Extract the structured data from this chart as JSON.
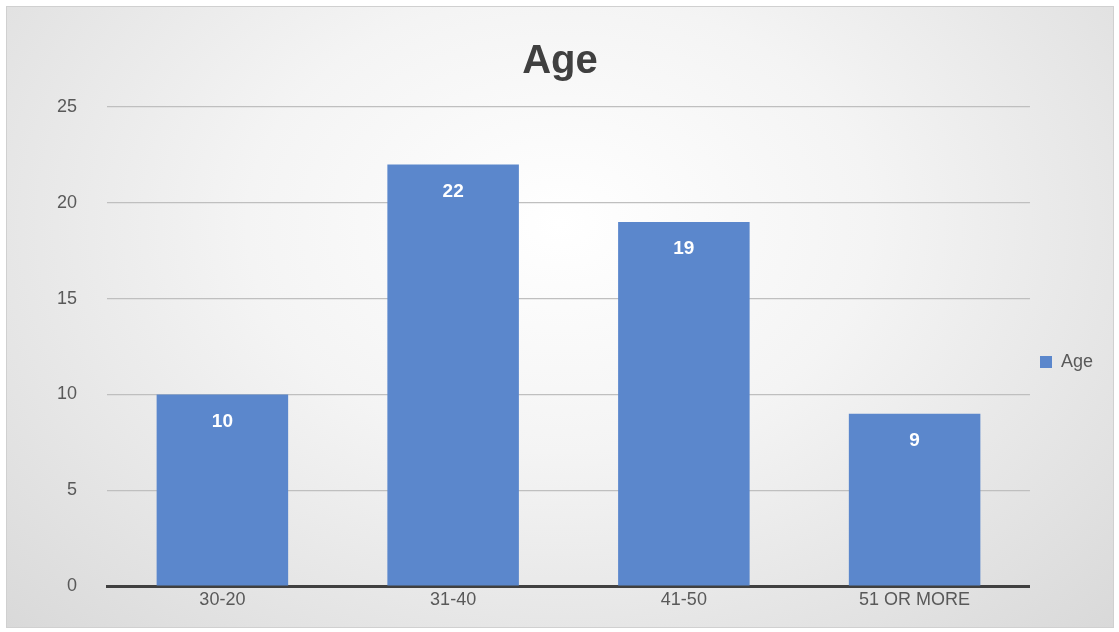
{
  "chart_data": {
    "type": "bar",
    "title": "Age",
    "categories": [
      "30-20",
      "31-40",
      "41-50",
      "51 OR MORE"
    ],
    "series": [
      {
        "name": "Age",
        "color": "#5b87cc",
        "values": [
          10,
          22,
          19,
          9
        ]
      }
    ],
    "ylim": [
      0,
      25
    ],
    "yticks": [
      0,
      5,
      10,
      15,
      20,
      25
    ],
    "grid": "y",
    "legend": "right",
    "data_labels": true
  }
}
